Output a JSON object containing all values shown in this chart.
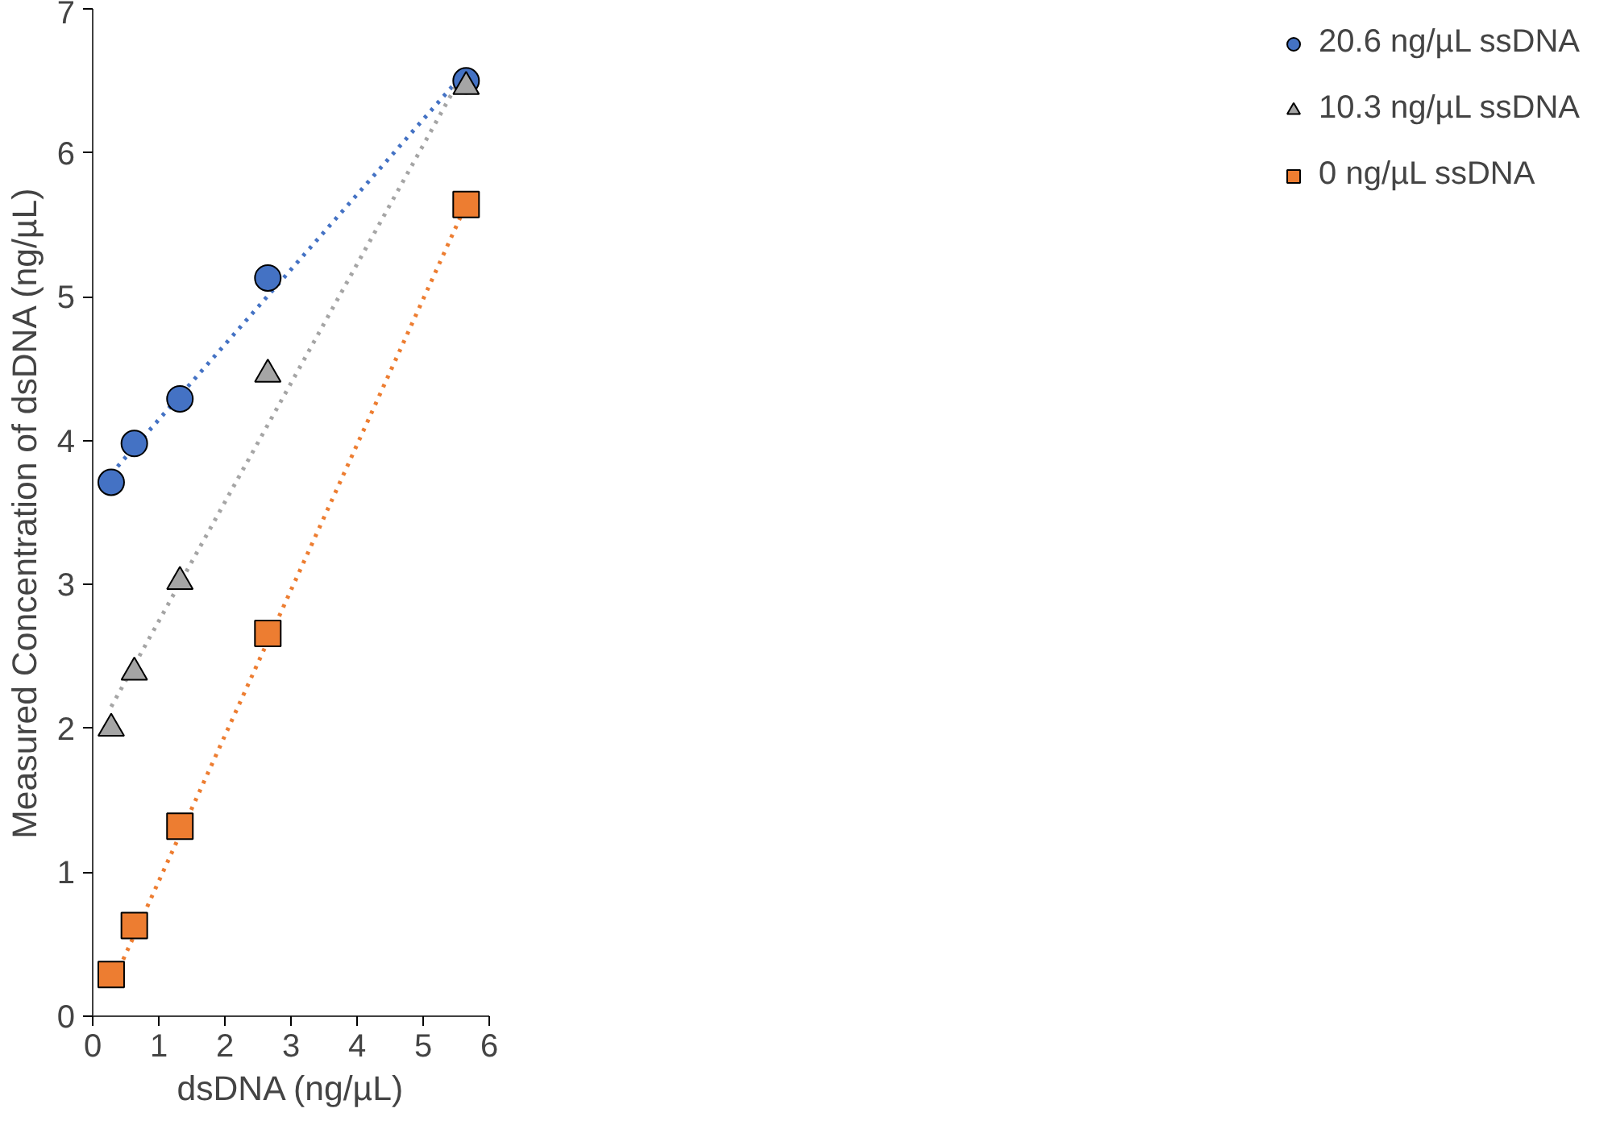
{
  "chart_data": {
    "type": "scatter",
    "xlabel": "dsDNA (ng/µL)",
    "ylabel": "Measured Concentration of dsDNA (ng/µL)",
    "xlim": [
      0,
      6
    ],
    "ylim": [
      0,
      7
    ],
    "xticks": [
      0,
      1,
      2,
      3,
      4,
      5,
      6
    ],
    "yticks": [
      0,
      1,
      2,
      3,
      4,
      5,
      6,
      7
    ],
    "grid": false,
    "legend": "right",
    "series": [
      {
        "type": "line",
        "line_style": "dotted",
        "marker": "none",
        "color": "#4472c4",
        "x": [
          0.28,
          5.65
        ],
        "values": [
          3.77,
          6.57
        ]
      },
      {
        "type": "line",
        "line_style": "dotted",
        "marker": "none",
        "color": "#a5a5a5",
        "x": [
          0.28,
          5.65
        ],
        "values": [
          2.15,
          6.59
        ]
      },
      {
        "type": "line",
        "line_style": "dotted",
        "marker": "none",
        "color": "#ed7d31",
        "x": [
          0.28,
          5.65
        ],
        "values": [
          0.21,
          5.64
        ]
      },
      {
        "name": "20.6 ng/µL ssDNA",
        "marker": "circle",
        "color": "#4472c4",
        "x": [
          0.28,
          0.63,
          1.32,
          2.65,
          5.65
        ],
        "values": [
          3.71,
          3.98,
          4.29,
          5.13,
          6.5
        ]
      },
      {
        "name": "10.3 ng/µL ssDNA",
        "marker": "triangle",
        "color": "#a5a5a5",
        "x": [
          0.28,
          0.63,
          1.32,
          2.65,
          5.65
        ],
        "values": [
          2.0,
          2.39,
          3.02,
          4.46,
          6.46
        ]
      },
      {
        "name": "0 ng/µL ssDNA",
        "marker": "square",
        "color": "#ed7d31",
        "x": [
          0.28,
          0.63,
          1.32,
          2.65,
          5.65
        ],
        "values": [
          0.29,
          0.63,
          1.32,
          2.66,
          5.64
        ]
      }
    ]
  }
}
